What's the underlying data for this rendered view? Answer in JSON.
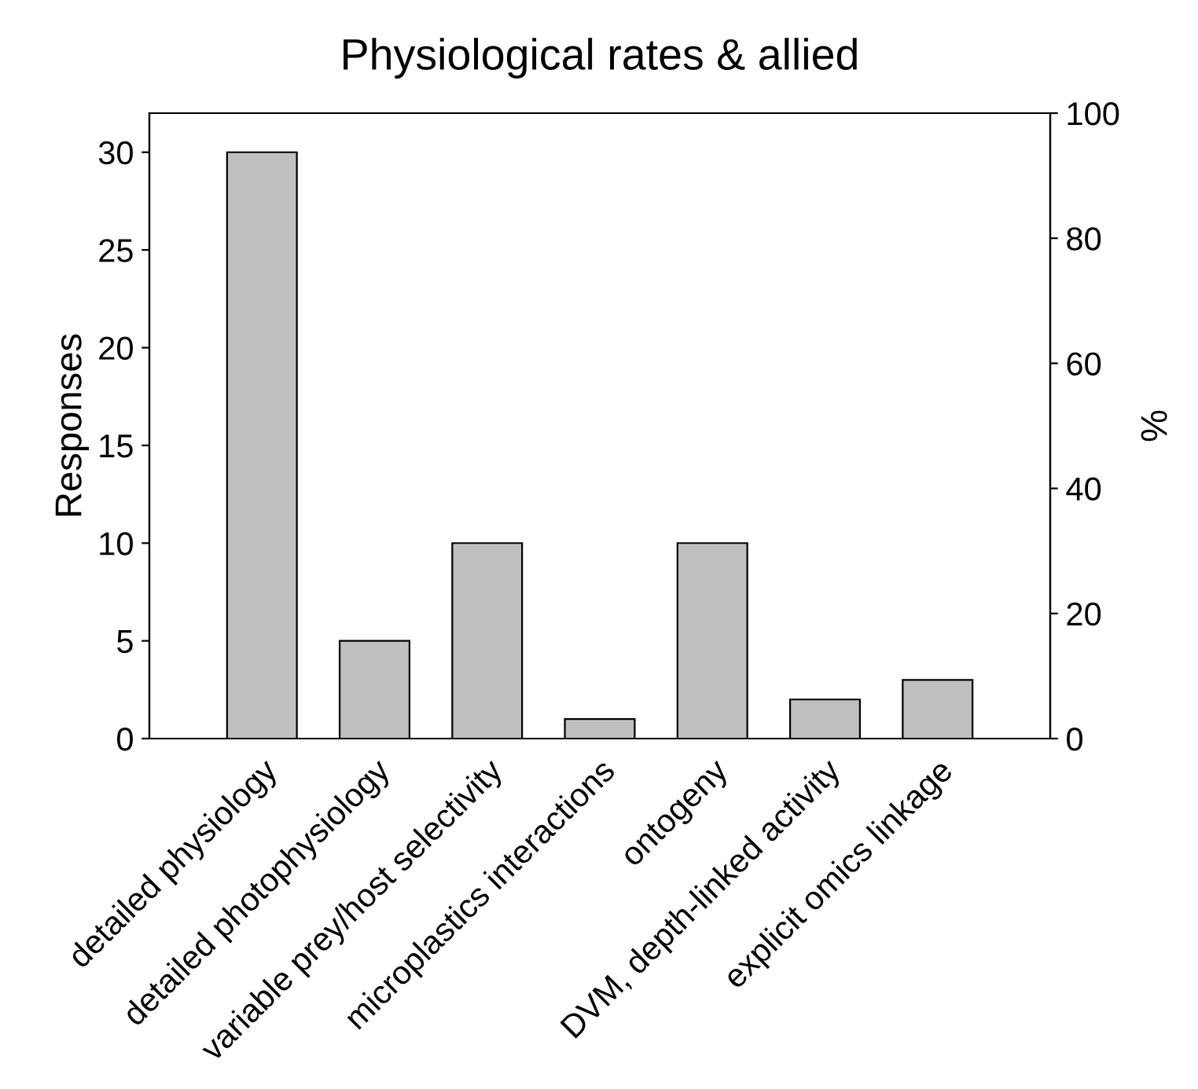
{
  "chart_data": {
    "type": "bar",
    "title": "Physiological rates & allied",
    "ylabel": "Responses",
    "y2label": "%",
    "categories": [
      "detailed physiology",
      "detailed photophysiology",
      "variable prey/host selectivity",
      "microplastics interactions",
      "ontogeny",
      "DVM, depth-linked activity",
      "explicit omics linkage"
    ],
    "series": [
      {
        "color": "#c0c0c0",
        "values": [
          30,
          5,
          10,
          1,
          10,
          2,
          3
        ]
      }
    ],
    "ylim": [
      0,
      32
    ],
    "yticks": [
      0,
      5,
      10,
      15,
      20,
      25,
      30
    ],
    "y2lim": [
      0,
      100
    ],
    "y2ticks": [
      0,
      20,
      40,
      60,
      80,
      100
    ],
    "grid": false,
    "legend": false
  }
}
